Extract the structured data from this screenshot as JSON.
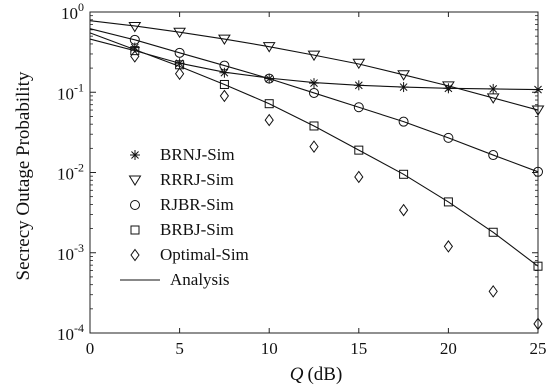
{
  "chart_data": {
    "type": "line",
    "xlabel_var": "Q",
    "xlabel_unit": "(dB)",
    "ylabel": "Secrecy Outage Probability",
    "xlim": [
      0,
      25
    ],
    "ylim": [
      0.0001,
      1
    ],
    "yscale": "log",
    "grid": false,
    "legend_position": "bottom-left",
    "x_ticks": [
      0,
      5,
      10,
      15,
      20,
      25
    ],
    "y_ticks": [
      {
        "value": 0.0001,
        "base": "10",
        "exp": "-4"
      },
      {
        "value": 0.001,
        "base": "10",
        "exp": "-3"
      },
      {
        "value": 0.01,
        "base": "10",
        "exp": "-2"
      },
      {
        "value": 0.1,
        "base": "10",
        "exp": "-1"
      },
      {
        "value": 1,
        "base": "10",
        "exp": "0"
      }
    ],
    "series": [
      {
        "name": "BRNJ-Sim",
        "marker": "asterisk",
        "x": [
          2.5,
          5,
          7.5,
          10,
          12.5,
          15,
          17.5,
          20,
          22.5,
          25
        ],
        "y": [
          0.36,
          0.23,
          0.175,
          0.148,
          0.13,
          0.122,
          0.116,
          0.112,
          0.11,
          0.108
        ],
        "analysis_x": [
          0,
          2.5,
          5,
          7.5,
          10,
          12.5,
          15,
          17.5,
          20,
          22.5,
          25
        ],
        "analysis_y": [
          0.46,
          0.33,
          0.23,
          0.178,
          0.15,
          0.132,
          0.122,
          0.116,
          0.112,
          0.11,
          0.108
        ]
      },
      {
        "name": "RRRJ-Sim",
        "marker": "triangle-down",
        "x": [
          2.5,
          5,
          7.5,
          10,
          12.5,
          15,
          17.5,
          20,
          22.5,
          25
        ],
        "y": [
          0.66,
          0.56,
          0.46,
          0.37,
          0.29,
          0.23,
          0.165,
          0.12,
          0.085,
          0.06
        ],
        "analysis_x": [
          0,
          2.5,
          5,
          7.5,
          10,
          12.5,
          15,
          17.5,
          20,
          22.5,
          25
        ],
        "analysis_y": [
          0.78,
          0.67,
          0.56,
          0.46,
          0.37,
          0.29,
          0.225,
          0.165,
          0.12,
          0.085,
          0.06
        ]
      },
      {
        "name": "RJBR-Sim",
        "marker": "circle",
        "x": [
          2.5,
          5,
          7.5,
          10,
          12.5,
          15,
          17.5,
          20,
          22.5,
          25
        ],
        "y": [
          0.45,
          0.31,
          0.215,
          0.148,
          0.098,
          0.065,
          0.043,
          0.027,
          0.0165,
          0.0102
        ],
        "analysis_x": [
          0,
          2.5,
          5,
          7.5,
          10,
          12.5,
          15,
          17.5,
          20,
          22.5,
          25
        ],
        "analysis_y": [
          0.62,
          0.45,
          0.31,
          0.215,
          0.148,
          0.098,
          0.065,
          0.043,
          0.027,
          0.0165,
          0.0102
        ]
      },
      {
        "name": "BRBJ-Sim",
        "marker": "square",
        "x": [
          2.5,
          5,
          7.5,
          10,
          12.5,
          15,
          17.5,
          20,
          22.5,
          25
        ],
        "y": [
          0.33,
          0.22,
          0.125,
          0.072,
          0.038,
          0.019,
          0.0095,
          0.0043,
          0.0018,
          0.00068
        ],
        "analysis_x": [
          0,
          2.5,
          5,
          7.5,
          10,
          12.5,
          15,
          17.5,
          20,
          22.5,
          25
        ],
        "analysis_y": [
          0.55,
          0.34,
          0.21,
          0.125,
          0.072,
          0.038,
          0.019,
          0.0095,
          0.0043,
          0.0018,
          0.00068
        ]
      },
      {
        "name": "Optimal-Sim",
        "marker": "diamond",
        "x": [
          2.5,
          5,
          7.5,
          10,
          12.5,
          15,
          17.5,
          20,
          22.5,
          25
        ],
        "y": [
          0.28,
          0.17,
          0.09,
          0.045,
          0.021,
          0.0088,
          0.0034,
          0.0012,
          0.00033,
          0.00013
        ]
      }
    ],
    "analysis_label": "Analysis"
  }
}
